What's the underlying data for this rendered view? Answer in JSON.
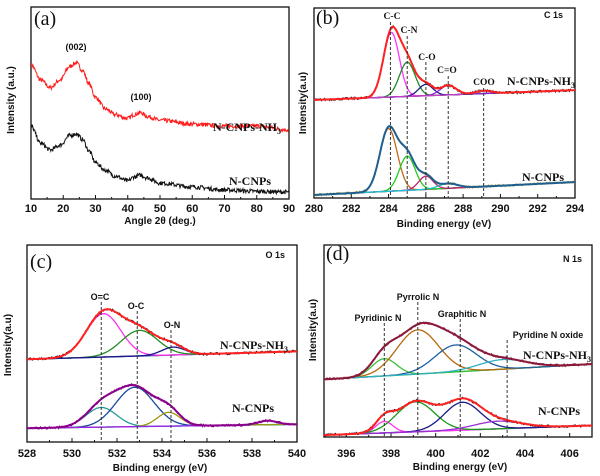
{
  "chart_data": [
    {
      "panel": "(a)",
      "type": "line",
      "xlabel": "Angle 2θ (deg.)",
      "ylabel": "Intensity (a.u.)",
      "xlim": [
        10,
        90
      ],
      "xticks": [
        "10",
        "20",
        "30",
        "40",
        "50",
        "60",
        "70",
        "80",
        "90"
      ],
      "grid": false,
      "series": [
        {
          "label": "N-CNPs-NH",
          "label_subscript": "3",
          "color": "#ff1a1a",
          "points": [
            [
              10,
              70
            ],
            [
              13,
              62
            ],
            [
              16,
              58
            ],
            [
              19,
              62
            ],
            [
              22,
              69
            ],
            [
              24,
              71
            ],
            [
              26,
              67
            ],
            [
              28,
              60
            ],
            [
              30,
              53
            ],
            [
              33,
              47
            ],
            [
              36,
              44
            ],
            [
              40,
              42
            ],
            [
              42,
              44
            ],
            [
              44,
              45
            ],
            [
              46,
              43
            ],
            [
              50,
              41
            ],
            [
              60,
              39
            ],
            [
              70,
              38
            ],
            [
              80,
              38
            ],
            [
              90,
              36
            ]
          ]
        },
        {
          "label": "N-CNPs",
          "color": "#111111",
          "points": [
            [
              10,
              38
            ],
            [
              13,
              29
            ],
            [
              16,
              25.5
            ],
            [
              19,
              28
            ],
            [
              22,
              33
            ],
            [
              24,
              34
            ],
            [
              26,
              31
            ],
            [
              28,
              25
            ],
            [
              30,
              19
            ],
            [
              33,
              15
            ],
            [
              36,
              12
            ],
            [
              40,
              9.4
            ],
            [
              42,
              11.5
            ],
            [
              44,
              12.5
            ],
            [
              46,
              11
            ],
            [
              50,
              8.3
            ],
            [
              60,
              6.3
            ],
            [
              70,
              4.7
            ],
            [
              80,
              4
            ],
            [
              90,
              3.6
            ]
          ]
        }
      ],
      "annotations": [
        {
          "text": "(002)",
          "x": 24
        },
        {
          "text": "(100)",
          "x": 44
        }
      ]
    },
    {
      "panel": "(b)",
      "type": "line",
      "title": "C 1s",
      "xlabel": "Binding energy (eV)",
      "ylabel": "Intensity(a.u)",
      "xlim": [
        280,
        294
      ],
      "xticks": [
        "280",
        "282",
        "284",
        "286",
        "288",
        "290",
        "292",
        "294"
      ],
      "grid": false,
      "reference_lines": [
        {
          "label": "C-C",
          "x": 284.1
        },
        {
          "label": "C-N",
          "x": 285.0
        },
        {
          "label": "C-O",
          "x": 286.0
        },
        {
          "label": "C=O",
          "x": 287.2
        },
        {
          "label": "COO",
          "x": 289.1
        }
      ],
      "samples": [
        {
          "label": "N-CNPs-NH",
          "label_subscript": "3",
          "raw_color": "#111111",
          "envelope_color": "#ff2020",
          "baseline_color": "#7a2ad0",
          "baseline": [
            [
              280,
              51.6
            ],
            [
              294,
              56.8
            ]
          ],
          "components": [
            {
              "center": 284.15,
              "fwhm": 1.0,
              "height": 34,
              "color": "#ff33ff"
            },
            {
              "center": 285.0,
              "fwhm": 1.0,
              "height": 18,
              "color": "#1f8a2a"
            },
            {
              "center": 286.0,
              "fwhm": 0.9,
              "height": 6,
              "color": "#1a1a8a"
            },
            {
              "center": 287.2,
              "fwhm": 1.0,
              "height": 5,
              "color": "#8a2ad0"
            },
            {
              "center": 289.1,
              "fwhm": 1.0,
              "height": 1.5,
              "color": "#c040c0"
            }
          ]
        },
        {
          "label": "N-CNPs",
          "raw_color": "#a8a040",
          "envelope_color": "#1f5f8f",
          "baseline_color": "#2040c0",
          "baseline": [
            [
              280,
              1.6
            ],
            [
              294,
              8.4
            ]
          ],
          "components": [
            {
              "center": 284.0,
              "fwhm": 1.1,
              "height": 33,
              "color": "#c06a1a"
            },
            {
              "center": 285.0,
              "fwhm": 1.0,
              "height": 18,
              "color": "#22cc22"
            },
            {
              "center": 286.0,
              "fwhm": 0.9,
              "height": 7,
              "color": "#c0206a"
            },
            {
              "center": 287.2,
              "fwhm": 1.2,
              "height": 2.5,
              "color": "#20c0d0"
            }
          ]
        }
      ]
    },
    {
      "panel": "(c)",
      "type": "line",
      "title": "O 1s",
      "xlabel": "Binding energy (eV)",
      "ylabel": "Intensity(a.u)",
      "xlim": [
        528,
        540
      ],
      "xticks": [
        "528",
        "530",
        "532",
        "534",
        "536",
        "538",
        "540"
      ],
      "grid": false,
      "reference_lines": [
        {
          "label": "O=C",
          "x": 531.3
        },
        {
          "label": "O-C",
          "x": 532.9
        },
        {
          "label": "O-N",
          "x": 534.4
        }
      ],
      "samples": [
        {
          "label": "N-CNPs-NH",
          "label_subscript": "3",
          "raw_color": "#111111",
          "envelope_color": "#ff2020",
          "baseline_color": "#1a2a9a",
          "baseline": [
            [
              528,
              42
            ],
            [
              540,
              46
            ]
          ],
          "components": [
            {
              "center": 531.4,
              "fwhm": 1.8,
              "height": 22,
              "color": "#ff33ee"
            },
            {
              "center": 533.0,
              "fwhm": 1.9,
              "height": 13,
              "color": "#228b22"
            },
            {
              "center": 534.5,
              "fwhm": 1.2,
              "height": 4,
              "color": "#1a1a8a"
            }
          ]
        },
        {
          "label": "N-CNPs",
          "raw_color": "#8b008b",
          "envelope_color": "#8b008b",
          "baseline_color": "#30d0d0",
          "baseline": [
            [
              528,
              7
            ],
            [
              540,
              9
            ]
          ],
          "components": [
            {
              "center": 531.3,
              "fwhm": 1.6,
              "height": 10,
              "color": "#2a9a9a"
            },
            {
              "center": 532.8,
              "fwhm": 2.0,
              "height": 20,
              "color": "#1a4a9a"
            },
            {
              "center": 534.3,
              "fwhm": 1.2,
              "height": 7,
              "color": "#9a9a10"
            },
            {
              "center": 538.7,
              "fwhm": 1.0,
              "height": 2,
              "color": "#a020f0"
            }
          ]
        }
      ]
    },
    {
      "panel": "(d)",
      "type": "line",
      "title": "N 1s",
      "xlabel": "Binding energy (eV)",
      "ylabel": "Intensity(a.u)",
      "xlim": [
        395,
        407
      ],
      "xticks": [
        "396",
        "398",
        "400",
        "402",
        "404",
        "406"
      ],
      "grid": false,
      "reference_lines": [
        {
          "label": "Pyridinic N",
          "x": 397.7
        },
        {
          "label": "Pyrrolic N",
          "x": 399.2
        },
        {
          "label": "Graphitic N",
          "x": 401.1
        },
        {
          "label": "Pyridine N oxide",
          "x": 403.2
        }
      ],
      "samples": [
        {
          "label": "N-CNPs-NH",
          "label_subscript": "3",
          "raw_color": "#8b1a3a",
          "envelope_color": "#8b1a3a",
          "baseline_color": "#40c040",
          "baseline": [
            [
              395,
              30
            ],
            [
              407,
              38
            ]
          ],
          "components": [
            {
              "center": 397.7,
              "fwhm": 1.3,
              "height": 9,
              "color": "#3ac03a"
            },
            {
              "center": 399.2,
              "fwhm": 2.2,
              "height": 23,
              "color": "#b8660b"
            },
            {
              "center": 400.9,
              "fwhm": 2.2,
              "height": 14,
              "color": "#1f5f9f"
            },
            {
              "center": 403.0,
              "fwhm": 2.5,
              "height": 5,
              "color": "#30b0c0"
            }
          ]
        },
        {
          "label": "N-CNPs",
          "raw_color": "#111111",
          "envelope_color": "#ff2020",
          "baseline_color": "#8a2ad0",
          "baseline": [
            [
              395,
              1
            ],
            [
              407,
              6
            ]
          ],
          "components": [
            {
              "center": 397.7,
              "fwhm": 0.9,
              "height": 6,
              "color": "#ff33ee"
            },
            {
              "center": 399.1,
              "fwhm": 2.0,
              "height": 15.6,
              "color": "#1a9a1a"
            },
            {
              "center": 401.2,
              "fwhm": 1.9,
              "height": 14.5,
              "color": "#1a1a8a"
            },
            {
              "center": 402.8,
              "fwhm": 2.5,
              "height": 4,
              "color": "#9a30d0"
            }
          ]
        }
      ]
    }
  ]
}
